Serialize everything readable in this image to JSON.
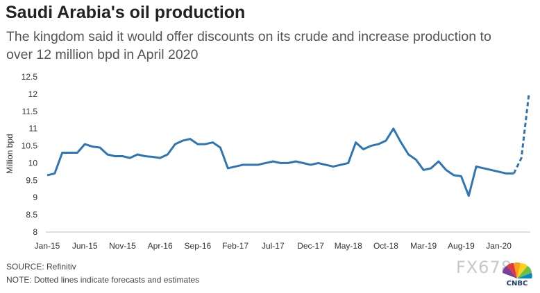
{
  "header": {
    "title": "Saudi Arabia's oil production",
    "subtitle": "The kingdom said it would offer discounts on its crude and increase production to over 12 million bpd in April 2020"
  },
  "footer": {
    "source": "SOURCE: Refinitiv",
    "note": "NOTE: Dotted lines indicate forecasts and estimates"
  },
  "watermark": {
    "text": "FX678"
  },
  "logo": {
    "text": "CNBC",
    "icon": "cnbc-peacock-icon"
  },
  "chart_data": {
    "type": "line",
    "title": "Saudi Arabia's oil production",
    "ylabel": "Million bpd",
    "xlabel": "",
    "ylim": [
      8,
      12.5
    ],
    "yticks": [
      8,
      8.5,
      9,
      9.5,
      10,
      10.5,
      11,
      11.5,
      12,
      12.5
    ],
    "ytick_labels": [
      "8",
      "8.5",
      "9",
      "9.5",
      "10",
      "10.5",
      "11",
      "11.5",
      "12",
      "12.5"
    ],
    "xtick_labels": [
      "Jan-15",
      "Jun-15",
      "Nov-15",
      "Apr-16",
      "Sep-16",
      "Feb-17",
      "Jul-17",
      "Dec-17",
      "May-18",
      "Oct-18",
      "Mar-19",
      "Aug-19",
      "Jan-20"
    ],
    "xtick_every": 5,
    "grid": false,
    "color": "#2e75b6",
    "series": [
      {
        "values": [
          9.65,
          9.7,
          10.3,
          10.3,
          10.3,
          10.55,
          10.48,
          10.45,
          10.25,
          10.2,
          10.2,
          10.15,
          10.25,
          10.2,
          10.18,
          10.15,
          10.25,
          10.55,
          10.65,
          10.7,
          10.55,
          10.55,
          10.6,
          10.45,
          9.85,
          9.9,
          9.95,
          9.95,
          9.95,
          10.0,
          10.05,
          10.0,
          10.0,
          10.05,
          10.0,
          9.95,
          10.0,
          9.95,
          9.9,
          9.95,
          10.0,
          10.6,
          10.4,
          10.5,
          10.55,
          10.65,
          11.0,
          10.6,
          10.25,
          10.1,
          9.8,
          9.85,
          10.05,
          9.8,
          9.65,
          9.62,
          9.05,
          9.9,
          9.85,
          9.8,
          9.75,
          9.7,
          9.7
        ],
        "forecast_values": [
          9.7,
          10.15,
          12.0
        ]
      }
    ]
  }
}
